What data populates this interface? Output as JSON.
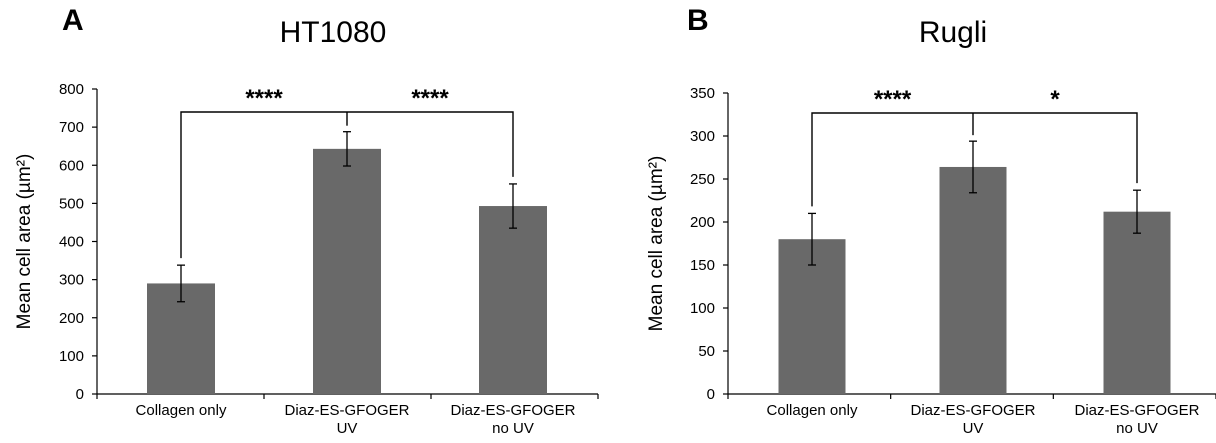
{
  "chart_data": [
    {
      "panel": "A",
      "title": "HT1080",
      "type": "bar",
      "ylabel": "Mean cell area (µm²)",
      "ylim": [
        0,
        800
      ],
      "yticks": [
        "0",
        "100",
        "200",
        "300",
        "400",
        "500",
        "600",
        "700",
        "800"
      ],
      "categories": [
        [
          "Collagen only"
        ],
        [
          "Diaz-ES-GFOGER",
          "UV"
        ],
        [
          "Diaz-ES-GFOGER",
          "no UV"
        ]
      ],
      "values": [
        290,
        643,
        493
      ],
      "errors": [
        48,
        45,
        58
      ],
      "bar_color": "#696969",
      "significance": [
        {
          "from": 0,
          "to": 1,
          "label": "****"
        },
        {
          "from": 1,
          "to": 2,
          "label": "****"
        }
      ]
    },
    {
      "panel": "B",
      "title": "Rugli",
      "type": "bar",
      "ylabel": "Mean cell area (µm²)",
      "ylim": [
        0,
        350
      ],
      "yticks": [
        "0",
        "50",
        "100",
        "150",
        "200",
        "250",
        "300",
        "350"
      ],
      "categories": [
        [
          "Collagen only"
        ],
        [
          "Diaz-ES-GFOGER",
          "UV"
        ],
        [
          "Diaz-ES-GFOGER",
          "no UV"
        ]
      ],
      "values": [
        180,
        264,
        212
      ],
      "errors": [
        30,
        30,
        25
      ],
      "bar_color": "#696969",
      "significance": [
        {
          "from": 0,
          "to": 1,
          "label": "****"
        },
        {
          "from": 1,
          "to": 2,
          "label": "*"
        }
      ]
    }
  ]
}
